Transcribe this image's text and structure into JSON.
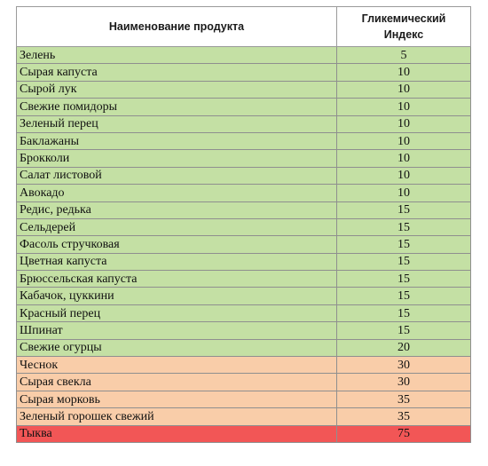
{
  "table": {
    "header_name": "Наименование продукта",
    "header_index": "Гликемический Индекс",
    "colors": {
      "low": "#c4e0a4",
      "mid": "#f9cda9",
      "high": "#f25656"
    },
    "rows": [
      {
        "name": "Зелень",
        "value": "5",
        "level": "low"
      },
      {
        "name": "Сырая капуста",
        "value": "10",
        "level": "low"
      },
      {
        "name": "Сырой лук",
        "value": "10",
        "level": "low"
      },
      {
        "name": "Свежие помидоры",
        "value": "10",
        "level": "low"
      },
      {
        "name": "Зеленый перец",
        "value": "10",
        "level": "low"
      },
      {
        "name": "Баклажаны",
        "value": "10",
        "level": "low"
      },
      {
        "name": "Брокколи",
        "value": "10",
        "level": "low"
      },
      {
        "name": "Салат листовой",
        "value": "10",
        "level": "low"
      },
      {
        "name": "Авокадо",
        "value": "10",
        "level": "low"
      },
      {
        "name": "Редис, редька",
        "value": "15",
        "level": "low"
      },
      {
        "name": "Сельдерей",
        "value": "15",
        "level": "low"
      },
      {
        "name": "Фасоль стручковая",
        "value": "15",
        "level": "low"
      },
      {
        "name": "Цветная капуста",
        "value": "15",
        "level": "low"
      },
      {
        "name": "Брюссельская капуста",
        "value": "15",
        "level": "low"
      },
      {
        "name": "Кабачок, цуккини",
        "value": "15",
        "level": "low"
      },
      {
        "name": "Красный перец",
        "value": "15",
        "level": "low"
      },
      {
        "name": "Шпинат",
        "value": "15",
        "level": "low"
      },
      {
        "name": "Свежие огурцы",
        "value": "20",
        "level": "low"
      },
      {
        "name": "Чеснок",
        "value": "30",
        "level": "mid"
      },
      {
        "name": "Сырая свекла",
        "value": "30",
        "level": "mid"
      },
      {
        "name": "Сырая морковь",
        "value": "35",
        "level": "mid"
      },
      {
        "name": "Зеленый горошек свежий",
        "value": "35",
        "level": "mid"
      },
      {
        "name": "Тыква",
        "value": "75",
        "level": "high"
      }
    ]
  }
}
